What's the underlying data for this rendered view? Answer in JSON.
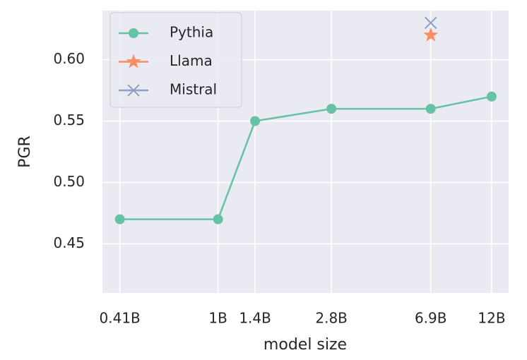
{
  "chart_data": {
    "type": "line",
    "xlabel": "model size",
    "ylabel": "PGR",
    "xscale": "log",
    "xlim": [
      0.35,
      14
    ],
    "ylim": [
      0.41,
      0.64
    ],
    "xticks": [
      {
        "value": 0.41,
        "label": "0.41B"
      },
      {
        "value": 1,
        "label": "1B"
      },
      {
        "value": 1.4,
        "label": "1.4B"
      },
      {
        "value": 2.8,
        "label": "2.8B"
      },
      {
        "value": 6.9,
        "label": "6.9B"
      },
      {
        "value": 12,
        "label": "12B"
      }
    ],
    "yticks": [
      {
        "value": 0.45,
        "label": "0.45"
      },
      {
        "value": 0.5,
        "label": "0.50"
      },
      {
        "value": 0.55,
        "label": "0.55"
      },
      {
        "value": 0.6,
        "label": "0.60"
      }
    ],
    "grid": true,
    "legend": "upper left",
    "series": [
      {
        "name": "Pythia",
        "color": "#66c2a5",
        "marker": "circle",
        "x": [
          0.41,
          1,
          1.4,
          2.8,
          6.9,
          12
        ],
        "values": [
          0.47,
          0.47,
          0.55,
          0.56,
          0.56,
          0.57
        ]
      },
      {
        "name": "Llama",
        "color": "#fc8d62",
        "marker": "star",
        "x": [
          6.9
        ],
        "values": [
          0.62
        ]
      },
      {
        "name": "Mistral",
        "color": "#8da0cb",
        "marker": "x",
        "x": [
          6.9
        ],
        "values": [
          0.63
        ]
      }
    ]
  }
}
